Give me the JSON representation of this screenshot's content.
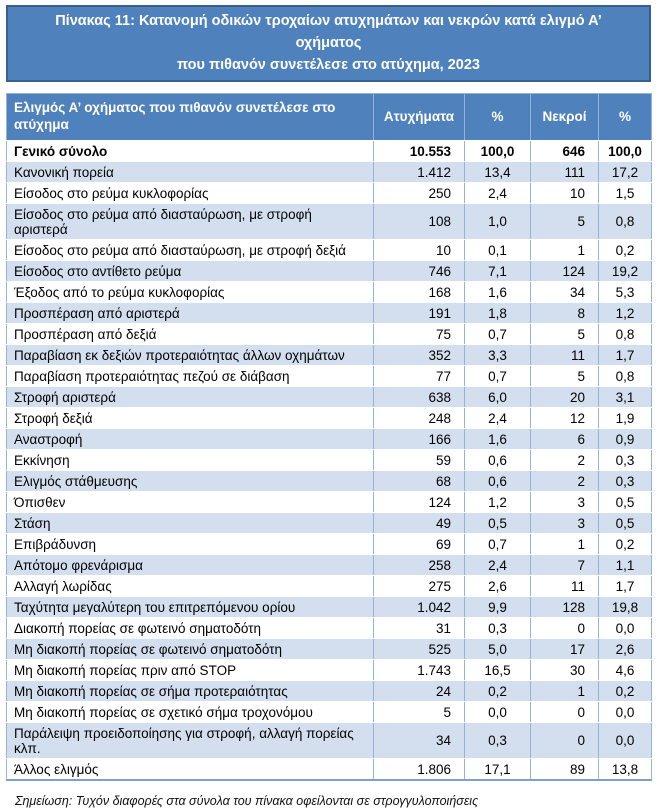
{
  "title": {
    "line1": "Πίνακας 11: Κατανομή οδικών τροχαίων ατυχημάτων και νεκρών κατά ελιγμό Α’ οχήματος",
    "line2": "που πιθανόν συνετέλεσε στο ατύχημα, 2023"
  },
  "table": {
    "columns": [
      "Ελιγμός Α’ οχήματος που πιθανόν συνετέλεσε στο ατύχημα",
      "Ατυχήματα",
      "%",
      "Νεκροί",
      "%"
    ],
    "rows": [
      [
        "Γενικό σύνολο",
        "10.553",
        "100,0",
        "646",
        "100,0"
      ],
      [
        "Κανονική πορεία",
        "1.412",
        "13,4",
        "111",
        "17,2"
      ],
      [
        "Είσοδος στο ρεύμα κυκλοφορίας",
        "250",
        "2,4",
        "10",
        "1,5"
      ],
      [
        "Είσοδος στο ρεύμα από διασταύρωση, με στροφή αριστερά",
        "108",
        "1,0",
        "5",
        "0,8"
      ],
      [
        "Είσοδος στο ρεύμα από διασταύρωση, με στροφή δεξιά",
        "10",
        "0,1",
        "1",
        "0,2"
      ],
      [
        "Είσοδος στο αντίθετο ρεύμα",
        "746",
        "7,1",
        "124",
        "19,2"
      ],
      [
        "Έξοδος από το ρεύμα κυκλοφορίας",
        "168",
        "1,6",
        "34",
        "5,3"
      ],
      [
        "Προσπέραση από αριστερά",
        "191",
        "1,8",
        "8",
        "1,2"
      ],
      [
        "Προσπέραση από δεξιά",
        "75",
        "0,7",
        "5",
        "0,8"
      ],
      [
        "Παραβίαση εκ δεξιών προτεραιότητας άλλων οχημάτων",
        "352",
        "3,3",
        "11",
        "1,7"
      ],
      [
        "Παραβίαση προτεραιότητας πεζού σε διάβαση",
        "77",
        "0,7",
        "5",
        "0,8"
      ],
      [
        "Στροφή αριστερά",
        "638",
        "6,0",
        "20",
        "3,1"
      ],
      [
        "Στροφή δεξιά",
        "248",
        "2,4",
        "12",
        "1,9"
      ],
      [
        "Αναστροφή",
        "166",
        "1,6",
        "6",
        "0,9"
      ],
      [
        "Εκκίνηση",
        "59",
        "0,6",
        "2",
        "0,3"
      ],
      [
        "Ελιγμός στάθμευσης",
        "68",
        "0,6",
        "2",
        "0,3"
      ],
      [
        "Όπισθεν",
        "124",
        "1,2",
        "3",
        "0,5"
      ],
      [
        "Στάση",
        "49",
        "0,5",
        "3",
        "0,5"
      ],
      [
        "Επιβράδυνση",
        "69",
        "0,7",
        "1",
        "0,2"
      ],
      [
        "Απότομο φρενάρισμα",
        "258",
        "2,4",
        "7",
        "1,1"
      ],
      [
        "Αλλαγή λωρίδας",
        "275",
        "2,6",
        "11",
        "1,7"
      ],
      [
        "Ταχύτητα μεγαλύτερη του επιτρεπόμενου ορίου",
        "1.042",
        "9,9",
        "128",
        "19,8"
      ],
      [
        "Διακοπή πορείας σε φωτεινό σηματοδότη",
        "31",
        "0,3",
        "0",
        "0,0"
      ],
      [
        "Μη διακοπή πορείας σε φωτεινό σηματοδότη",
        "525",
        "5,0",
        "17",
        "2,6"
      ],
      [
        "Μη διακοπή πορείας πριν από STOP",
        "1.743",
        "16,5",
        "30",
        "4,6"
      ],
      [
        "Μη διακοπή πορείας σε σήμα προτεραιότητας",
        "24",
        "0,2",
        "1",
        "0,2"
      ],
      [
        "Μη διακοπή πορείας σε σχετικό σήμα τροχονόμου",
        "5",
        "0,0",
        "0",
        "0,0"
      ],
      [
        "Παράλειψη προειδοποίησης για στροφή, αλλαγή πορείας κλπ.",
        "34",
        "0,3",
        "0",
        "0,0"
      ],
      [
        "Άλλος ελιγμός",
        "1.806",
        "17,1",
        "89",
        "13,8"
      ]
    ]
  },
  "note": "Σημείωση: Τυχόν διαφορές στα σύνολα του πίνακα οφείλονται σε στρογγυλοποιήσεις",
  "colors": {
    "header_blue": "#4F81BD",
    "title_border": "#36618E",
    "band_blue": "#D3DFEE",
    "grid_blue": "#95B3D7",
    "text": "#000000"
  }
}
